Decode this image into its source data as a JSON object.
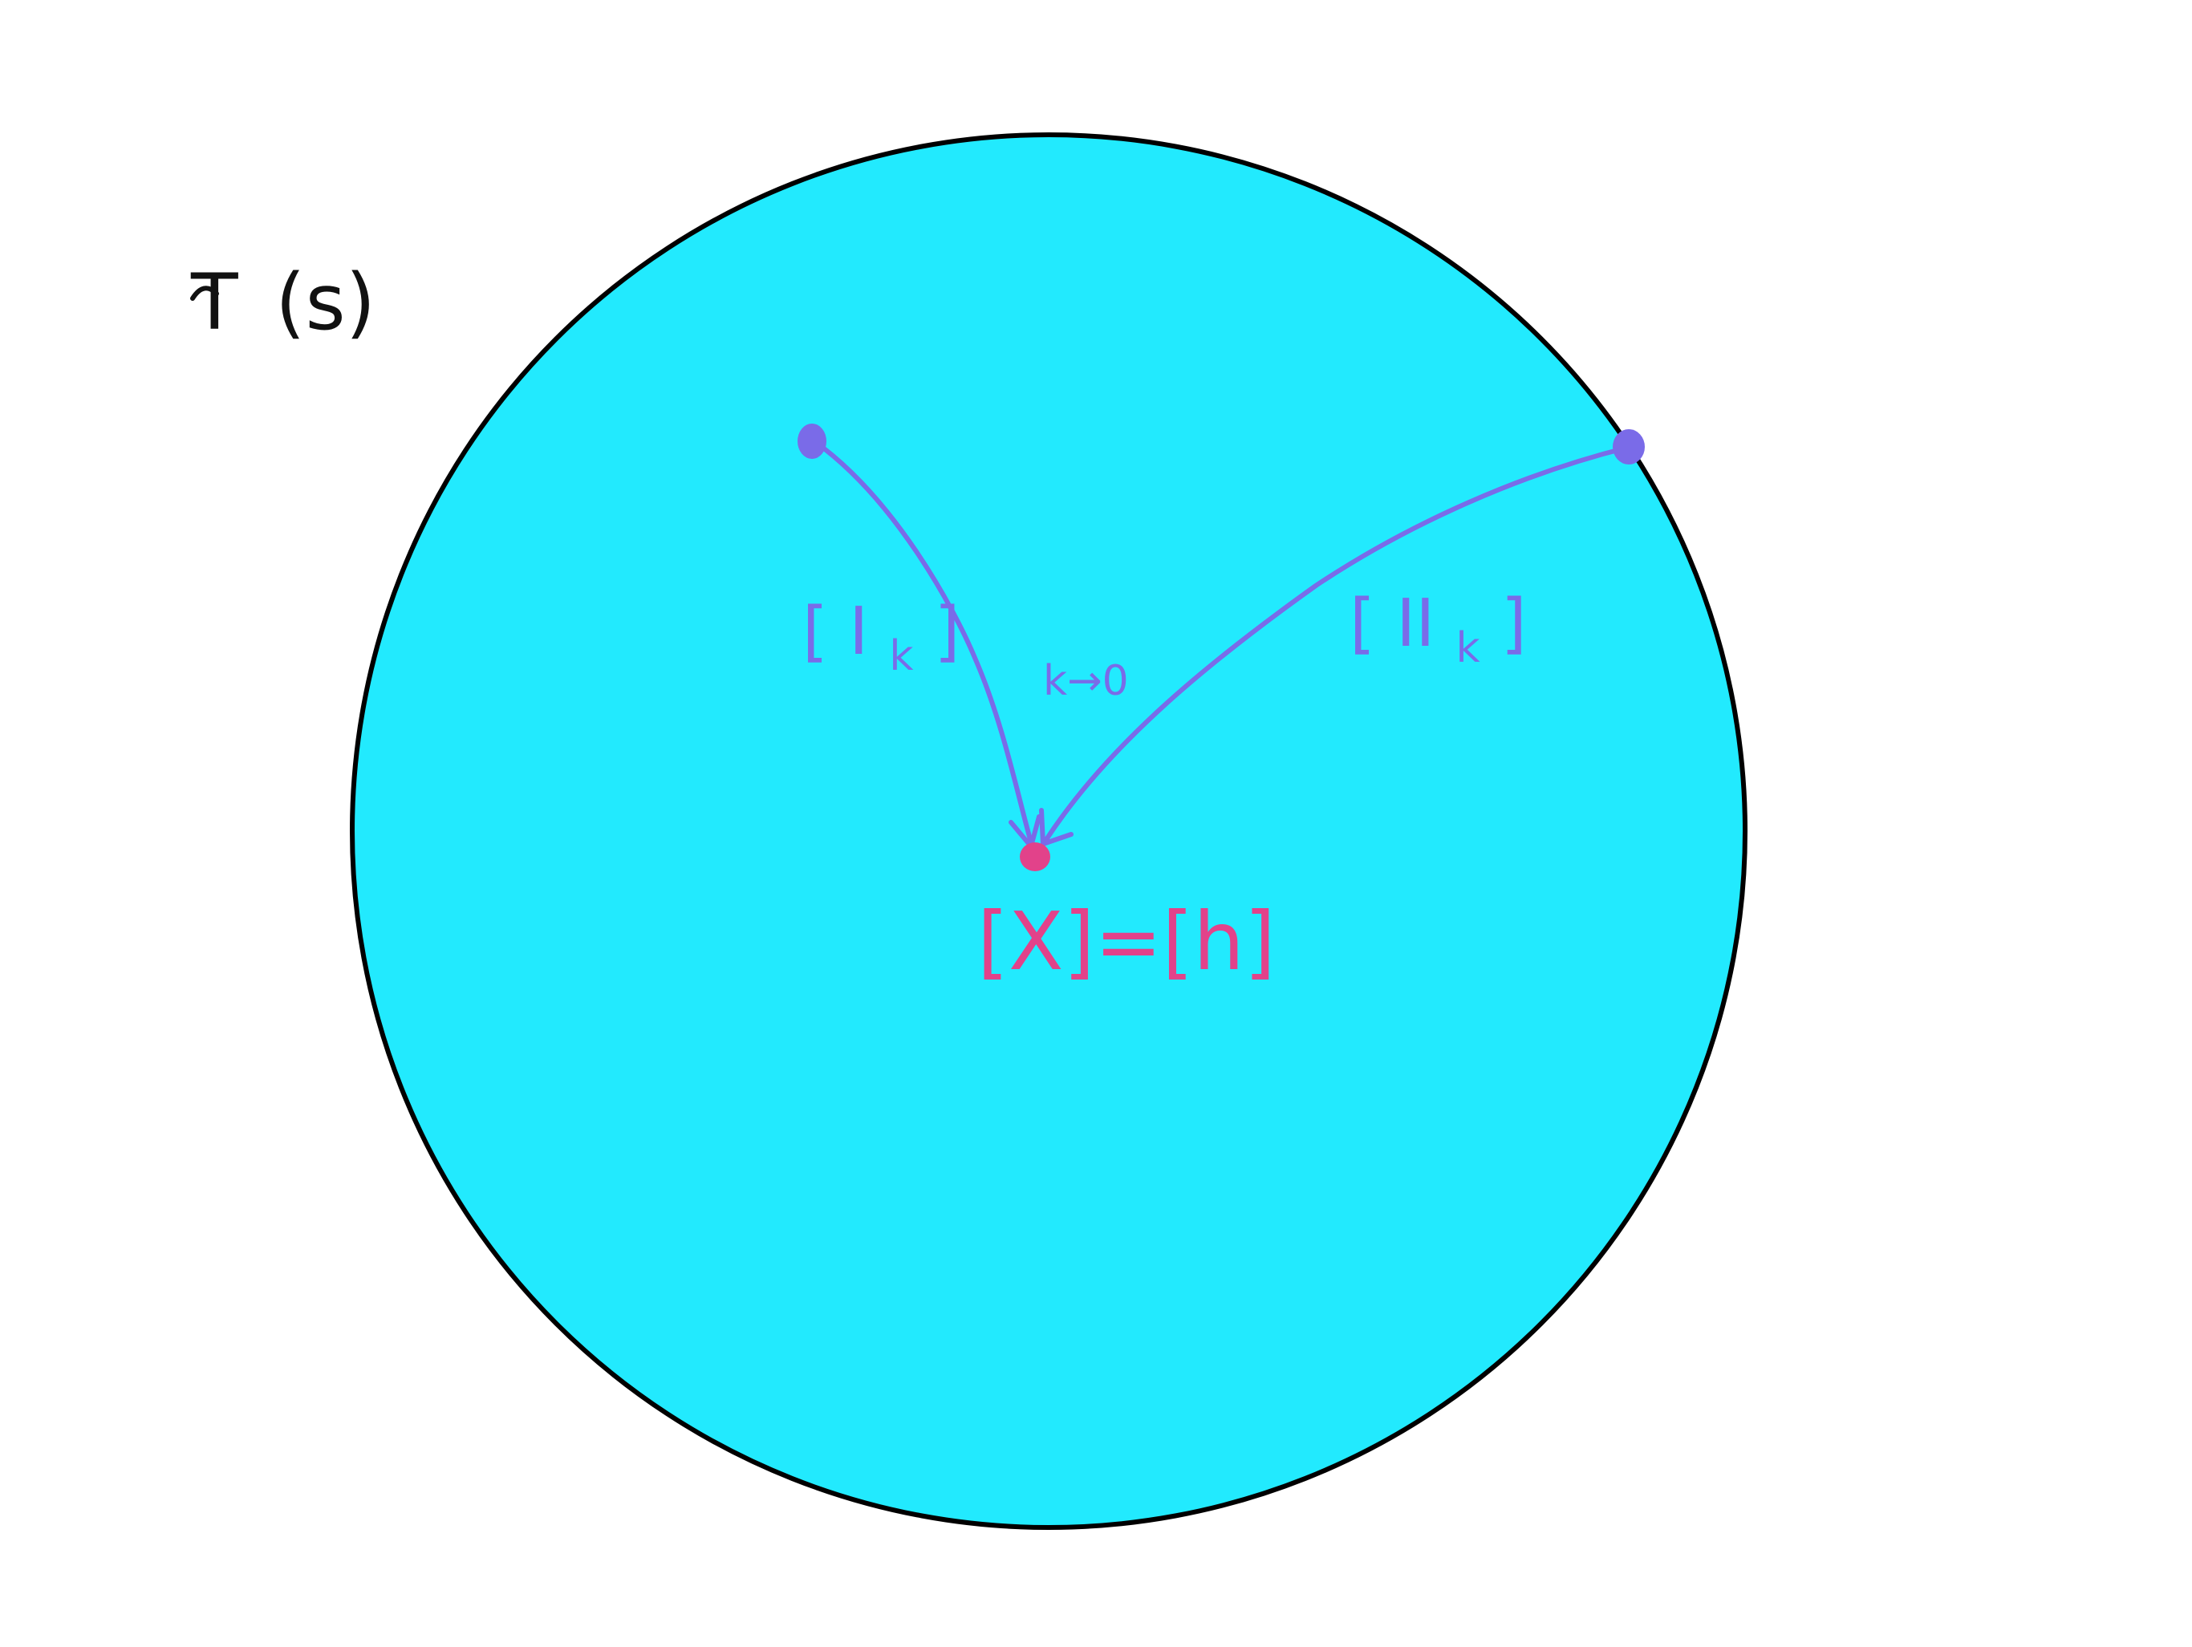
{
  "space_label": {
    "prefix": "T",
    "argument": "(s)"
  },
  "paths": [
    {
      "bracket_open": "[",
      "symbol": "I",
      "subscript": "k",
      "bracket_close": "]"
    },
    {
      "bracket_open": "[",
      "symbol": "II",
      "subscript": "k",
      "bracket_close": "]"
    }
  ],
  "limit_label": "k→0",
  "limit_point_label": "[X]=[h]",
  "colors": {
    "disk_fill": "#22eafe",
    "disk_stroke": "#000000",
    "path": "#7a6be8",
    "limit_point": "#e2428a",
    "text": "#111111"
  }
}
